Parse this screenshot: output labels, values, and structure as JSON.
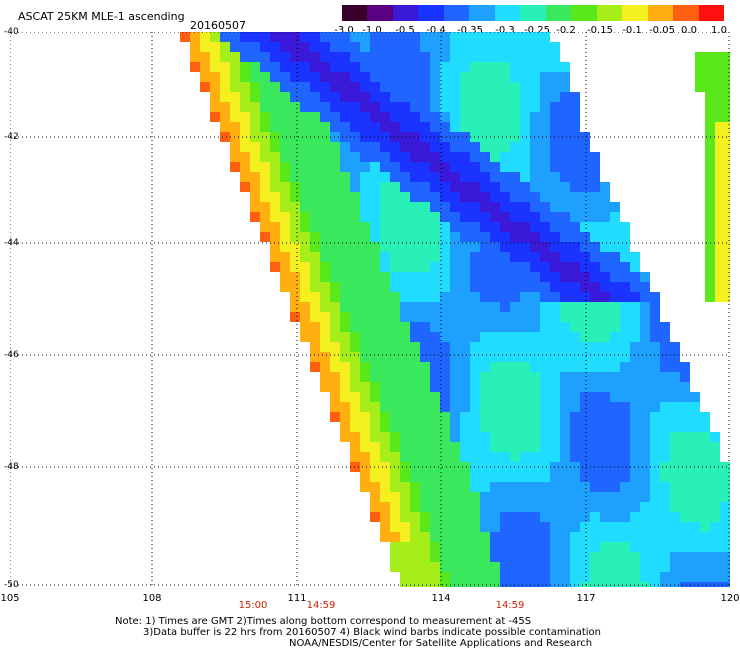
{
  "header": {
    "title": "ASCAT 25KM MLE-1 ascending",
    "date": "20160507"
  },
  "colorbar": {
    "labels": [
      "-3.0",
      "-1.0",
      "-0.5",
      "-0.4",
      "-0.35",
      "-0.3",
      "-0.25",
      "-0.2",
      "-0.15",
      "-0.1",
      "-0.05",
      "0.0",
      "1.0"
    ],
    "colors": [
      "#3a002a",
      "#5a0080",
      "#3a1ad8",
      "#1a33ff",
      "#1e66ff",
      "#1ea0ff",
      "#20dcff",
      "#29f0b8",
      "#39e85c",
      "#5ae81a",
      "#a6ee1a",
      "#f4f020",
      "#ffb010",
      "#ff6010",
      "#ff1010"
    ]
  },
  "map": {
    "lat_labels": [
      "-40",
      "-42",
      "-44",
      "-46",
      "-48",
      "-50"
    ],
    "lon_labels": [
      "105",
      "108",
      "111",
      "114",
      "117",
      "120"
    ],
    "time_labels": [
      "15:00",
      "14:59",
      "14:59"
    ]
  },
  "notes": [
    "Note: 1) Times are GMT 2)Times along bottom correspond to measurement at -45S",
    "3)Data buffer is 22 hrs from 20160507 4) Black wind barbs indicate possible contamination",
    "NOAA/NESDIS/Center for Satellite Applications and Research"
  ]
}
